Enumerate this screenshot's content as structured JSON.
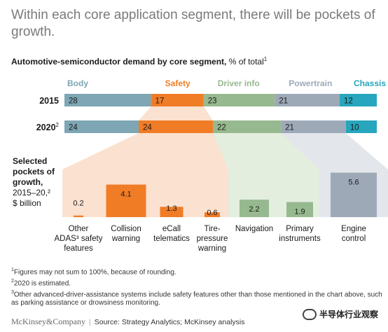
{
  "headline": "Within each core application segment, there will be pockets of growth.",
  "subhead": {
    "bold": "Automotive-semiconductor demand by core segment,",
    "unit": " % of total",
    "footnote_ref": "1"
  },
  "chart_data": [
    {
      "type": "bar",
      "subtype": "stacked-horizontal-100",
      "categories": [
        "Body",
        "Safety",
        "Driver info",
        "Powertrain",
        "Chassis"
      ],
      "colors": [
        "#7ea6b4",
        "#f07c26",
        "#97b98f",
        "#9ea9b8",
        "#27a6bd"
      ],
      "rows": [
        {
          "label": "2015",
          "footnote_ref": "",
          "values": [
            28,
            17,
            23,
            21,
            12
          ]
        },
        {
          "label": "2020",
          "footnote_ref": "2",
          "values": [
            24,
            24,
            22,
            21,
            10
          ]
        }
      ],
      "unit": "% of total"
    },
    {
      "type": "bar",
      "title_lines": [
        "Selected",
        "pockets of",
        "growth,",
        "2015–20,²",
        "$ billion"
      ],
      "categories": [
        [
          "Other",
          "ADAS³ safety",
          "features"
        ],
        [
          "Collision",
          "warning"
        ],
        [
          "eCall",
          "telematics"
        ],
        [
          "Tire-",
          "pressure",
          "warning"
        ],
        [
          "Navigation"
        ],
        [
          "Primary",
          "instruments"
        ],
        [
          "Engine",
          "control"
        ]
      ],
      "values": [
        0.2,
        4.1,
        1.3,
        0.6,
        2.2,
        1.9,
        5.6
      ],
      "value_labels": [
        "0.2",
        "4.1",
        "1.3",
        "0.6",
        "2.2",
        "1.9",
        "5.6"
      ],
      "segment": [
        "Safety",
        "Safety",
        "Safety",
        "Safety",
        "Driver info",
        "Driver info",
        "Powertrain"
      ],
      "colors": [
        "#f07c26",
        "#f07c26",
        "#f07c26",
        "#f07c26",
        "#97b98f",
        "#97b98f",
        "#9ea9b8"
      ],
      "ylim": [
        0,
        6
      ]
    }
  ],
  "footnotes": [
    {
      "mark": "1",
      "text": "Figures may not sum to 100%, because of rounding."
    },
    {
      "mark": "2",
      "text": "2020 is estimated."
    },
    {
      "mark": "3",
      "text": "Other advanced-driver-assistance systems include safety features other than those mentioned in the chart above, such as parking assistance or drowsiness monitoring."
    }
  ],
  "footer": {
    "brand": "McKinsey&Company",
    "source": "Source: Strategy Analytics; McKinsey analysis"
  },
  "watermark": "半导体行业观察"
}
